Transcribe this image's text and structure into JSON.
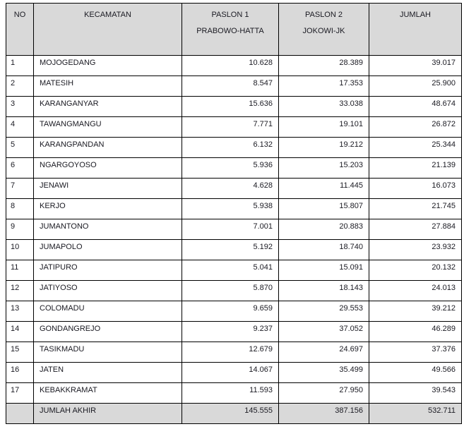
{
  "colors": {
    "header_bg": "#d9d9d9",
    "border": "#000000",
    "text": "#1a1a22"
  },
  "table": {
    "headers": {
      "no": "NO",
      "kecamatan": "KECAMATAN",
      "paslon1_line1": "PASLON 1",
      "paslon1_line2": "PRABOWO-HATTA",
      "paslon2_line1": "PASLON 2",
      "paslon2_line2": "JOKOWI-JK",
      "jumlah": "JUMLAH"
    },
    "rows": [
      {
        "no": "1",
        "kecamatan": "MOJOGEDANG",
        "paslon1": "10.628",
        "paslon2": "28.389",
        "jumlah": "39.017"
      },
      {
        "no": "2",
        "kecamatan": "MATESIH",
        "paslon1": "8.547",
        "paslon2": "17.353",
        "jumlah": "25.900"
      },
      {
        "no": "3",
        "kecamatan": "KARANGANYAR",
        "paslon1": "15.636",
        "paslon2": "33.038",
        "jumlah": "48.674"
      },
      {
        "no": "4",
        "kecamatan": "TAWANGMANGU",
        "paslon1": "7.771",
        "paslon2": "19.101",
        "jumlah": "26.872"
      },
      {
        "no": "5",
        "kecamatan": "KARANGPANDAN",
        "paslon1": "6.132",
        "paslon2": "19.212",
        "jumlah": "25.344"
      },
      {
        "no": "6",
        "kecamatan": "NGARGOYOSO",
        "paslon1": "5.936",
        "paslon2": "15.203",
        "jumlah": "21.139"
      },
      {
        "no": "7",
        "kecamatan": "JENAWI",
        "paslon1": "4.628",
        "paslon2": "11.445",
        "jumlah": "16.073"
      },
      {
        "no": "8",
        "kecamatan": "KERJO",
        "paslon1": "5.938",
        "paslon2": "15.807",
        "jumlah": "21.745"
      },
      {
        "no": "9",
        "kecamatan": "JUMANTONO",
        "paslon1": "7.001",
        "paslon2": "20.883",
        "jumlah": "27.884"
      },
      {
        "no": "10",
        "kecamatan": "JUMAPOLO",
        "paslon1": "5.192",
        "paslon2": "18.740",
        "jumlah": "23.932"
      },
      {
        "no": "11",
        "kecamatan": "JATIPURO",
        "paslon1": "5.041",
        "paslon2": "15.091",
        "jumlah": "20.132"
      },
      {
        "no": "12",
        "kecamatan": "JATIYOSO",
        "paslon1": "5.870",
        "paslon2": "18.143",
        "jumlah": "24.013"
      },
      {
        "no": "13",
        "kecamatan": "COLOMADU",
        "paslon1": "9.659",
        "paslon2": "29.553",
        "jumlah": "39.212"
      },
      {
        "no": "14",
        "kecamatan": "GONDANGREJO",
        "paslon1": "9.237",
        "paslon2": "37.052",
        "jumlah": "46.289"
      },
      {
        "no": "15",
        "kecamatan": "TASIKMADU",
        "paslon1": "12.679",
        "paslon2": "24.697",
        "jumlah": "37.376"
      },
      {
        "no": "16",
        "kecamatan": "JATEN",
        "paslon1": "14.067",
        "paslon2": "35.499",
        "jumlah": "49.566"
      },
      {
        "no": "17",
        "kecamatan": "KEBAKKRAMAT",
        "paslon1": "11.593",
        "paslon2": "27.950",
        "jumlah": "39.543"
      }
    ],
    "footer": {
      "no": "",
      "label": "JUMLAH AKHIR",
      "paslon1": "145.555",
      "paslon2": "387.156",
      "jumlah": "532.711"
    }
  }
}
